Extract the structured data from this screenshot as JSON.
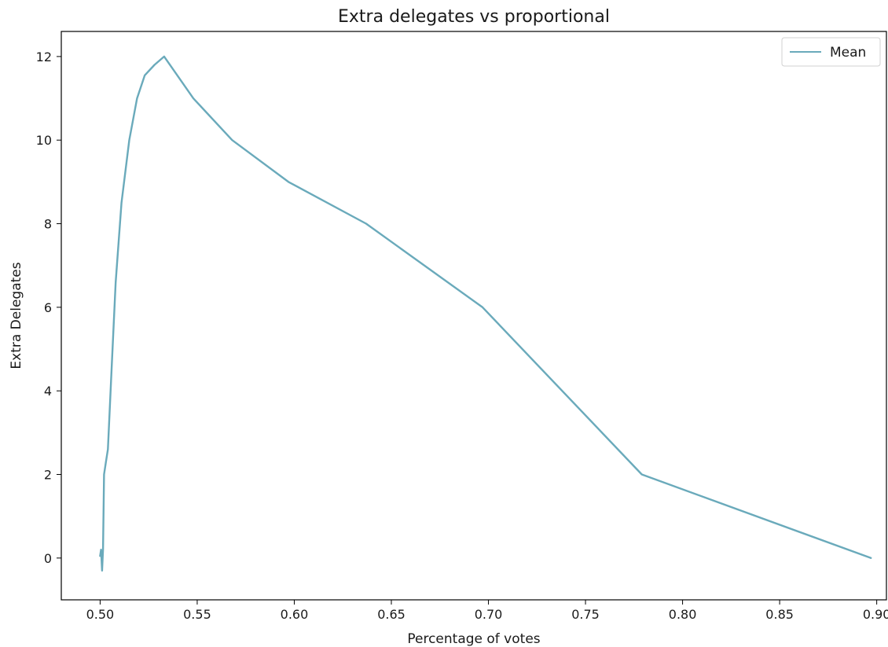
{
  "chart_data": {
    "type": "line",
    "title": "Extra delegates vs proportional",
    "xlabel": "Percentage of votes",
    "ylabel": "Extra Delegates",
    "xlim": [
      0.48,
      0.905
    ],
    "ylim": [
      -1.0,
      12.6
    ],
    "xticks": [
      0.5,
      0.55,
      0.6,
      0.65,
      0.7,
      0.75,
      0.8,
      0.85,
      0.9
    ],
    "xtick_labels": [
      "0.50",
      "0.55",
      "0.60",
      "0.65",
      "0.70",
      "0.75",
      "0.80",
      "0.85",
      "0.90"
    ],
    "yticks": [
      0,
      2,
      4,
      6,
      8,
      10,
      12
    ],
    "ytick_labels": [
      "0",
      "2",
      "4",
      "6",
      "8",
      "10",
      "12"
    ],
    "grid": false,
    "legend_position": "top-right",
    "series": [
      {
        "name": "Mean",
        "color": "#6aaabb",
        "x": [
          0.5,
          0.5005,
          0.501,
          0.5015,
          0.502,
          0.503,
          0.504,
          0.506,
          0.508,
          0.511,
          0.515,
          0.519,
          0.523,
          0.528,
          0.533,
          0.548,
          0.568,
          0.597,
          0.637,
          0.697,
          0.779,
          0.897
        ],
        "y": [
          0.05,
          0.2,
          -0.3,
          0.2,
          2.0,
          2.3,
          2.6,
          4.6,
          6.6,
          8.5,
          10.0,
          11.0,
          11.55,
          11.8,
          12.0,
          11.0,
          10.0,
          9.0,
          8.0,
          6.0,
          2.0,
          0.0
        ]
      }
    ]
  }
}
